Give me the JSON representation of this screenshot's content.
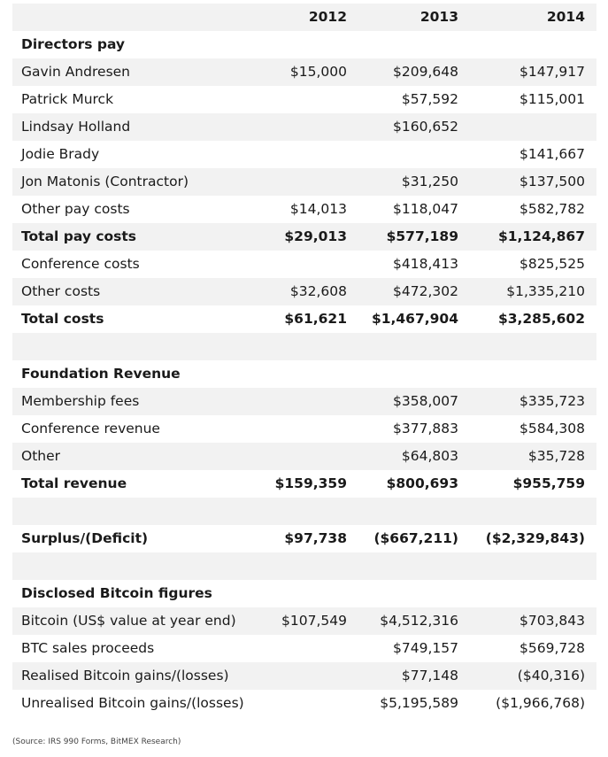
{
  "columns": [
    "2012",
    "2013",
    "2014"
  ],
  "rows": [
    {
      "type": "section",
      "label": "Directors pay",
      "v": [
        "",
        "",
        ""
      ]
    },
    {
      "type": "data",
      "label": "Gavin Andresen",
      "v": [
        "$15,000",
        "$209,648",
        "$147,917"
      ]
    },
    {
      "type": "data",
      "label": "Patrick Murck",
      "v": [
        "",
        "$57,592",
        "$115,001"
      ]
    },
    {
      "type": "data",
      "label": "Lindsay Holland",
      "v": [
        "",
        "$160,652",
        ""
      ]
    },
    {
      "type": "data",
      "label": "Jodie Brady",
      "v": [
        "",
        "",
        "$141,667"
      ]
    },
    {
      "type": "data",
      "label": "Jon Matonis (Contractor)",
      "v": [
        "",
        "$31,250",
        "$137,500"
      ]
    },
    {
      "type": "data",
      "label": "Other pay costs",
      "v": [
        "$14,013",
        "$118,047",
        "$582,782"
      ]
    },
    {
      "type": "total",
      "label": "Total pay costs",
      "v": [
        "$29,013",
        "$577,189",
        "$1,124,867"
      ]
    },
    {
      "type": "data",
      "label": "Conference costs",
      "v": [
        "",
        "$418,413",
        "$825,525"
      ]
    },
    {
      "type": "data",
      "label": "Other costs",
      "v": [
        "$32,608",
        "$472,302",
        "$1,335,210"
      ]
    },
    {
      "type": "total",
      "label": "Total costs",
      "v": [
        "$61,621",
        "$1,467,904",
        "$3,285,602"
      ]
    },
    {
      "type": "blank",
      "label": "",
      "v": [
        "",
        "",
        ""
      ]
    },
    {
      "type": "section",
      "label": "Foundation Revenue",
      "v": [
        "",
        "",
        ""
      ]
    },
    {
      "type": "data",
      "label": "Membership fees",
      "v": [
        "",
        "$358,007",
        "$335,723"
      ]
    },
    {
      "type": "data",
      "label": "Conference revenue",
      "v": [
        "",
        "$377,883",
        "$584,308"
      ]
    },
    {
      "type": "data",
      "label": "Other",
      "v": [
        "",
        "$64,803",
        "$35,728"
      ]
    },
    {
      "type": "total",
      "label": "Total revenue",
      "v": [
        "$159,359",
        "$800,693",
        "$955,759"
      ]
    },
    {
      "type": "blank",
      "label": "",
      "v": [
        "",
        "",
        ""
      ]
    },
    {
      "type": "total",
      "label": "Surplus/(Deficit)",
      "v": [
        "$97,738",
        "($667,211)",
        "($2,329,843)"
      ]
    },
    {
      "type": "blank",
      "label": "",
      "v": [
        "",
        "",
        ""
      ]
    },
    {
      "type": "section",
      "label": "Disclosed Bitcoin figures",
      "v": [
        "",
        "",
        ""
      ]
    },
    {
      "type": "data",
      "label": "Bitcoin (US$ value at year end)",
      "v": [
        "$107,549",
        "$4,512,316",
        "$703,843"
      ]
    },
    {
      "type": "data",
      "label": "BTC sales proceeds",
      "v": [
        "",
        "$749,157",
        "$569,728"
      ]
    },
    {
      "type": "data",
      "label": "Realised Bitcoin gains/(losses)",
      "v": [
        "",
        "$77,148",
        "($40,316)"
      ]
    },
    {
      "type": "data",
      "label": "Unrealised Bitcoin gains/(losses)",
      "v": [
        "",
        "$5,195,589",
        "($1,966,768)"
      ]
    }
  ],
  "source": "(Source: IRS 990 Forms, BitMEX Research)",
  "colors": {
    "shade": "#f2f2f2",
    "white": "#ffffff",
    "text": "#1a1a1a"
  }
}
